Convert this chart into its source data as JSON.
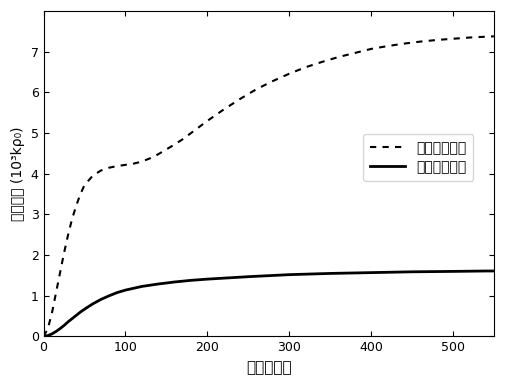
{
  "title": "",
  "xlabel": "时间（分）",
  "ylabel": "位错密度（10³kρ₀）",
  "xlim": [
    0,
    550
  ],
  "ylim": [
    0,
    8
  ],
  "xticks": [
    0,
    100,
    200,
    300,
    400,
    500
  ],
  "yticks": [
    0,
    1,
    2,
    3,
    4,
    5,
    6,
    7
  ],
  "legend1": "常规冷却工艺",
  "legend2": "改进冷却工艺",
  "line1_color": "#000000",
  "line2_color": "#000000",
  "background": "#ffffff",
  "curve1_x": [
    0,
    5,
    10,
    15,
    20,
    25,
    30,
    35,
    40,
    45,
    50,
    60,
    70,
    80,
    90,
    100,
    110,
    120,
    130,
    140,
    150,
    160,
    170,
    180,
    190,
    200,
    220,
    240,
    260,
    280,
    300,
    320,
    340,
    360,
    380,
    400,
    420,
    440,
    460,
    480,
    500,
    520,
    540,
    550
  ],
  "curve1_y": [
    0,
    0.18,
    0.55,
    1.05,
    1.55,
    2.05,
    2.5,
    2.9,
    3.22,
    3.5,
    3.72,
    3.95,
    4.08,
    4.15,
    4.19,
    4.22,
    4.25,
    4.3,
    4.38,
    4.48,
    4.6,
    4.72,
    4.85,
    5.0,
    5.15,
    5.3,
    5.58,
    5.84,
    6.08,
    6.28,
    6.46,
    6.62,
    6.75,
    6.87,
    6.97,
    7.07,
    7.14,
    7.2,
    7.25,
    7.29,
    7.32,
    7.35,
    7.37,
    7.38
  ],
  "curve2_x": [
    0,
    5,
    10,
    15,
    20,
    25,
    30,
    35,
    40,
    45,
    50,
    60,
    70,
    80,
    90,
    100,
    120,
    140,
    160,
    180,
    200,
    250,
    300,
    350,
    400,
    450,
    500,
    540,
    550
  ],
  "curve2_y": [
    0,
    0.02,
    0.06,
    0.12,
    0.19,
    0.27,
    0.36,
    0.44,
    0.52,
    0.6,
    0.67,
    0.8,
    0.91,
    1.0,
    1.08,
    1.14,
    1.23,
    1.29,
    1.34,
    1.38,
    1.41,
    1.47,
    1.52,
    1.55,
    1.57,
    1.59,
    1.6,
    1.61,
    1.61
  ],
  "ylabel_text": "位错密度 (10³kρ₀)"
}
